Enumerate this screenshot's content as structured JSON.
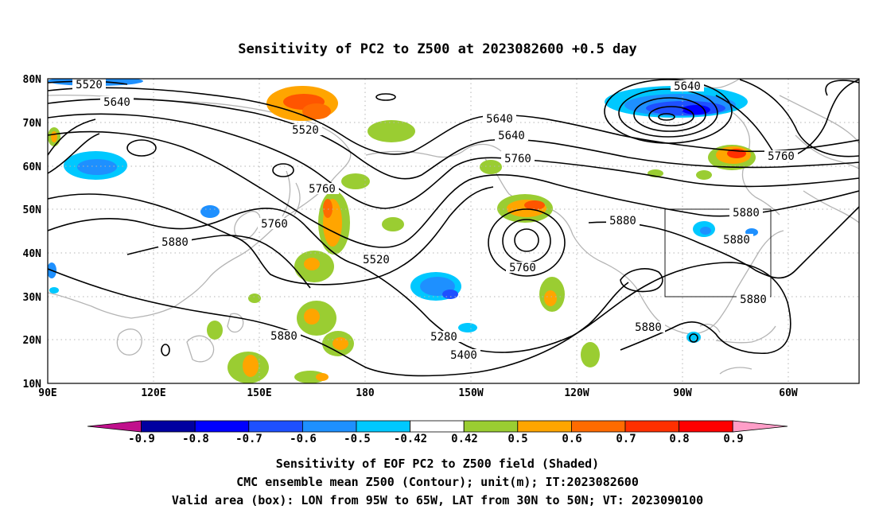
{
  "title": "Sensitivity of PC2 to Z500 at 2023082600 +0.5 day",
  "map": {
    "lat_ticks": [
      "80N",
      "70N",
      "60N",
      "50N",
      "40N",
      "30N",
      "20N",
      "10N"
    ],
    "lon_ticks": [
      "90E",
      "120E",
      "150E",
      "180",
      "150W",
      "120W",
      "90W",
      "60W"
    ],
    "lat_range": [
      10,
      80
    ],
    "lon_range_east": [
      90,
      320
    ],
    "gridlines": "dotted",
    "contour_labels": [
      "5520",
      "5640",
      "5520",
      "5640",
      "5760",
      "5880",
      "5760",
      "5520",
      "5640",
      "5760",
      "5760",
      "5880",
      "5880",
      "5280",
      "5400",
      "5640",
      "5760",
      "5880",
      "5880",
      "5880",
      "5880"
    ],
    "valid_box": {
      "lon_w": -95,
      "lon_e": -65,
      "lat_s": 30,
      "lat_n": 50
    }
  },
  "colorbar": {
    "labels": [
      "-0.9",
      "-0.8",
      "-0.7",
      "-0.6",
      "-0.5",
      "-0.42",
      "0.42",
      "0.5",
      "0.6",
      "0.7",
      "0.8",
      "0.9"
    ],
    "colors": [
      "#c0108c",
      "#0000a0",
      "#0000ff",
      "#1e50ff",
      "#1e90ff",
      "#00c8ff",
      "#ffffff",
      "#9acd32",
      "#ffa500",
      "#ff6b00",
      "#ff3000",
      "#ff0000",
      "#ff9ec8"
    ]
  },
  "caption": {
    "line1": "Sensitivity of EOF PC2 to Z500 field (Shaded)",
    "line2": "CMC ensemble mean Z500 (Contour); unit(m); IT:2023082600",
    "line3": "Valid area (box): LON from 95W to 65W, LAT from 30N to 50N; VT: 2023090100"
  }
}
